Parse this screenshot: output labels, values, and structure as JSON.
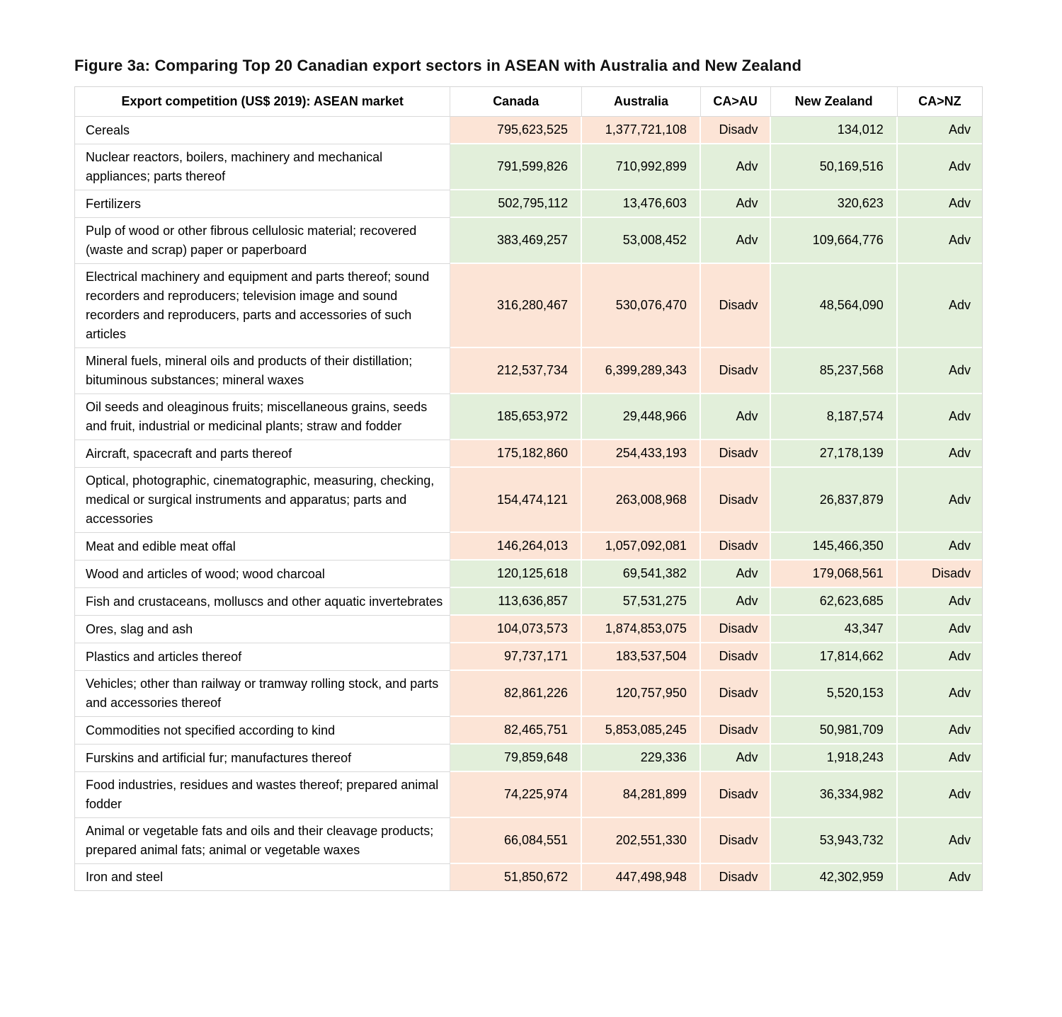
{
  "title": "Figure 3a: Comparing Top 20 Canadian export sectors in ASEAN with Australia and New Zealand",
  "colors": {
    "advantage_fill": "#e2efda",
    "disadvantage_fill": "#fce4d6"
  },
  "table": {
    "headers": [
      "Export competition (US$ 2019): ASEAN market",
      "Canada",
      "Australia",
      "CA>AU",
      "New Zealand",
      "CA>NZ"
    ],
    "rows": [
      {
        "sector": "Cereals",
        "canada": "795,623,525",
        "australia": "1,377,721,108",
        "ca_au": "Disadv",
        "new_zealand": "134,012",
        "ca_nz": "Adv"
      },
      {
        "sector": "Nuclear reactors, boilers, machinery and mechanical appliances; parts thereof",
        "canada": "791,599,826",
        "australia": "710,992,899",
        "ca_au": "Adv",
        "new_zealand": "50,169,516",
        "ca_nz": "Adv"
      },
      {
        "sector": "Fertilizers",
        "canada": "502,795,112",
        "australia": "13,476,603",
        "ca_au": "Adv",
        "new_zealand": "320,623",
        "ca_nz": "Adv"
      },
      {
        "sector": "Pulp of wood or other fibrous cellulosic material; recovered (waste and scrap) paper or paperboard",
        "canada": "383,469,257",
        "australia": "53,008,452",
        "ca_au": "Adv",
        "new_zealand": "109,664,776",
        "ca_nz": "Adv"
      },
      {
        "sector": "Electrical machinery and equipment and parts thereof; sound recorders and reproducers; television image and sound recorders and reproducers, parts and accessories of such articles",
        "canada": "316,280,467",
        "australia": "530,076,470",
        "ca_au": "Disadv",
        "new_zealand": "48,564,090",
        "ca_nz": "Adv"
      },
      {
        "sector": "Mineral fuels, mineral oils and products of their distillation; bituminous substances; mineral waxes",
        "canada": "212,537,734",
        "australia": "6,399,289,343",
        "ca_au": "Disadv",
        "new_zealand": "85,237,568",
        "ca_nz": "Adv"
      },
      {
        "sector": "Oil seeds and oleaginous fruits; miscellaneous grains, seeds and fruit, industrial or medicinal plants; straw and fodder",
        "canada": "185,653,972",
        "australia": "29,448,966",
        "ca_au": "Adv",
        "new_zealand": "8,187,574",
        "ca_nz": "Adv"
      },
      {
        "sector": "Aircraft, spacecraft and parts thereof",
        "canada": "175,182,860",
        "australia": "254,433,193",
        "ca_au": "Disadv",
        "new_zealand": "27,178,139",
        "ca_nz": "Adv"
      },
      {
        "sector": "Optical, photographic, cinematographic, measuring, checking, medical or surgical instruments and apparatus; parts and accessories",
        "canada": "154,474,121",
        "australia": "263,008,968",
        "ca_au": "Disadv",
        "new_zealand": "26,837,879",
        "ca_nz": "Adv"
      },
      {
        "sector": "Meat and edible meat offal",
        "canada": "146,264,013",
        "australia": "1,057,092,081",
        "ca_au": "Disadv",
        "new_zealand": "145,466,350",
        "ca_nz": "Adv"
      },
      {
        "sector": "Wood and articles of wood; wood charcoal",
        "canada": "120,125,618",
        "australia": "69,541,382",
        "ca_au": "Adv",
        "new_zealand": "179,068,561",
        "ca_nz": "Disadv"
      },
      {
        "sector": "Fish and crustaceans, molluscs and other aquatic invertebrates",
        "canada": "113,636,857",
        "australia": "57,531,275",
        "ca_au": "Adv",
        "new_zealand": "62,623,685",
        "ca_nz": "Adv"
      },
      {
        "sector": "Ores, slag and ash",
        "canada": "104,073,573",
        "australia": "1,874,853,075",
        "ca_au": "Disadv",
        "new_zealand": "43,347",
        "ca_nz": "Adv"
      },
      {
        "sector": "Plastics and articles thereof",
        "canada": "97,737,171",
        "australia": "183,537,504",
        "ca_au": "Disadv",
        "new_zealand": "17,814,662",
        "ca_nz": "Adv"
      },
      {
        "sector": "Vehicles; other than railway or tramway rolling stock, and parts and accessories thereof",
        "canada": "82,861,226",
        "australia": "120,757,950",
        "ca_au": "Disadv",
        "new_zealand": "5,520,153",
        "ca_nz": "Adv"
      },
      {
        "sector": "Commodities not specified according to kind",
        "canada": "82,465,751",
        "australia": "5,853,085,245",
        "ca_au": "Disadv",
        "new_zealand": "50,981,709",
        "ca_nz": "Adv"
      },
      {
        "sector": "Furskins and artificial fur; manufactures thereof",
        "canada": "79,859,648",
        "australia": "229,336",
        "ca_au": "Adv",
        "new_zealand": "1,918,243",
        "ca_nz": "Adv"
      },
      {
        "sector": "Food industries, residues and wastes thereof; prepared animal fodder",
        "canada": "74,225,974",
        "australia": "84,281,899",
        "ca_au": "Disadv",
        "new_zealand": "36,334,982",
        "ca_nz": "Adv"
      },
      {
        "sector": "Animal or vegetable fats and oils and their cleavage products; prepared animal fats; animal or vegetable waxes",
        "canada": "66,084,551",
        "australia": "202,551,330",
        "ca_au": "Disadv",
        "new_zealand": "53,943,732",
        "ca_nz": "Adv"
      },
      {
        "sector": "Iron and steel",
        "canada": "51,850,672",
        "australia": "447,498,948",
        "ca_au": "Disadv",
        "new_zealand": "42,302,959",
        "ca_nz": "Adv"
      }
    ]
  }
}
